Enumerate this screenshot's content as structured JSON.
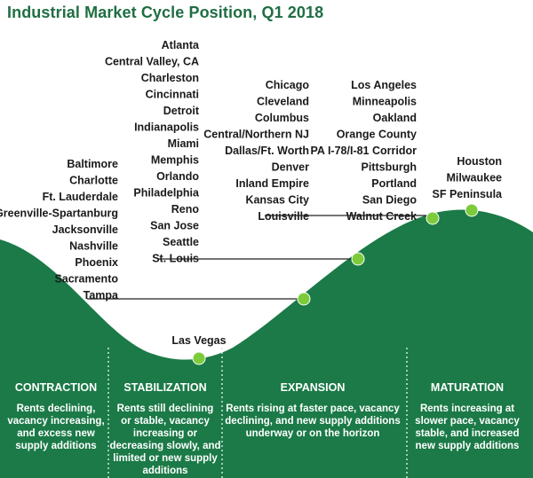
{
  "title": "Industrial Market Cycle Position, Q1 2018",
  "colors": {
    "title": "#1f6e43",
    "fill": "#1b7a47",
    "dot": "#7ccb3b",
    "divider": "#cfe7d7",
    "text": "#1a1a1a"
  },
  "city_groups": [
    {
      "id": "las-vegas",
      "cities": [
        "Las Vegas"
      ]
    },
    {
      "id": "group-tampa",
      "cities": [
        "Baltimore",
        "Charlotte",
        "Ft. Lauderdale",
        "Greenville-Spartanburg",
        "Jacksonville",
        "Nashville",
        "Phoenix",
        "Sacramento",
        "Tampa"
      ]
    },
    {
      "id": "group-st-louis",
      "cities": [
        "Atlanta",
        "Central Valley, CA",
        "Charleston",
        "Cincinnati",
        "Detroit",
        "Indianapolis",
        "Miami",
        "Memphis",
        "Orlando",
        "Philadelphia",
        "Reno",
        "San Jose",
        "Seattle",
        "St. Louis"
      ]
    },
    {
      "id": "group-louisville",
      "cities": [
        "Chicago",
        "Cleveland",
        "Columbus",
        "Central/Northern NJ",
        "Dallas/Ft. Worth",
        "Denver",
        "Inland Empire",
        "Kansas City",
        "Louisville"
      ]
    },
    {
      "id": "group-walnut-creek",
      "cities": [
        "Los Angeles",
        "Minneapolis",
        "Oakland",
        "Orange County",
        "PA I-78/I-81 Corridor",
        "Pittsburgh",
        "Portland",
        "San Diego",
        "Walnut Creek"
      ]
    },
    {
      "id": "group-sf-peninsula",
      "cities": [
        "Houston",
        "Milwaukee",
        "SF Peninsula"
      ]
    }
  ],
  "phases": [
    {
      "name": "CONTRACTION",
      "description": [
        "Rents declining,",
        "vacancy increasing,",
        "and excess new",
        "supply additions"
      ]
    },
    {
      "name": "STABILIZATION",
      "description": [
        "Rents still declining",
        "or stable, vacancy",
        "increasing or",
        "decreasing slowly, and",
        "limited or new supply",
        "additions"
      ]
    },
    {
      "name": "EXPANSION",
      "description": [
        "Rents rising at faster pace, vacancy",
        "declining, and new supply additions",
        "underway or on the horizon"
      ]
    },
    {
      "name": "MATURATION",
      "description": [
        "Rents increasing at",
        "slower pace, vacancy",
        "stable, and increased",
        "new supply additions"
      ]
    }
  ]
}
